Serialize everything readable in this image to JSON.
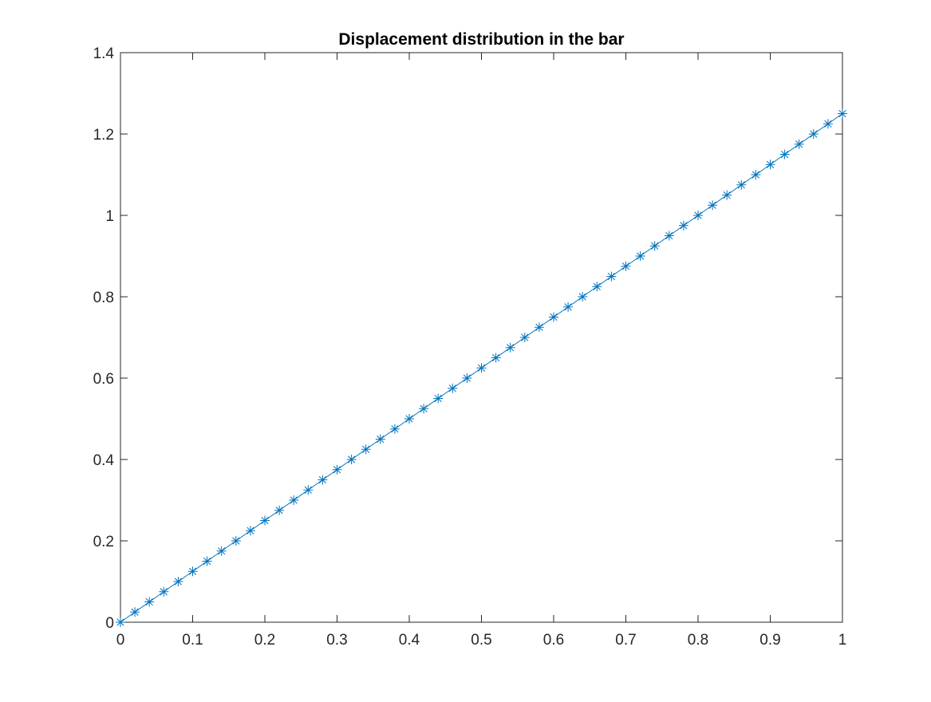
{
  "chart_data": {
    "type": "line",
    "title": "Displacement distribution in the bar",
    "xlabel": "",
    "ylabel": "",
    "xlim": [
      0,
      1
    ],
    "ylim": [
      0,
      1.4
    ],
    "x_ticks": [
      0,
      0.1,
      0.2,
      0.3,
      0.4,
      0.5,
      0.6,
      0.7,
      0.8,
      0.9,
      1
    ],
    "x_tick_labels": [
      "0",
      "0.1",
      "0.2",
      "0.3",
      "0.4",
      "0.5",
      "0.6",
      "0.7",
      "0.8",
      "0.9",
      "1"
    ],
    "y_ticks": [
      0,
      0.2,
      0.4,
      0.6,
      0.8,
      1,
      1.2,
      1.4
    ],
    "y_tick_labels": [
      "0",
      "0.2",
      "0.4",
      "0.6",
      "0.8",
      "1",
      "1.2",
      "1.4"
    ],
    "grid": false,
    "legend": "none",
    "box": true,
    "series": [
      {
        "marker": "asterisk",
        "color": "#0072BD",
        "x": [
          0,
          0.02,
          0.04,
          0.06,
          0.08,
          0.1,
          0.12,
          0.14,
          0.16,
          0.18,
          0.2,
          0.22,
          0.24,
          0.26,
          0.28,
          0.3,
          0.32,
          0.34,
          0.36,
          0.38,
          0.4,
          0.42,
          0.44,
          0.46,
          0.48,
          0.5,
          0.52,
          0.54,
          0.56,
          0.58,
          0.6,
          0.62,
          0.64,
          0.66,
          0.68,
          0.7,
          0.72,
          0.74,
          0.76,
          0.78,
          0.8,
          0.82,
          0.84,
          0.86,
          0.88,
          0.9,
          0.92,
          0.94,
          0.96,
          0.98,
          1
        ],
        "y": [
          0,
          0.025,
          0.05,
          0.075,
          0.1,
          0.125,
          0.15,
          0.175,
          0.2,
          0.225,
          0.25,
          0.275,
          0.3,
          0.325,
          0.35,
          0.375,
          0.4,
          0.425,
          0.45,
          0.475,
          0.5,
          0.525,
          0.55,
          0.575,
          0.6,
          0.625,
          0.65,
          0.675,
          0.7,
          0.725,
          0.75,
          0.775,
          0.8,
          0.825,
          0.85,
          0.875,
          0.9,
          0.925,
          0.95,
          0.975,
          1,
          1.025,
          1.05,
          1.075,
          1.1,
          1.125,
          1.15,
          1.175,
          1.2,
          1.225,
          1.25
        ]
      }
    ]
  },
  "colors": {
    "background": "#ffffff",
    "axes": "#262626",
    "series": "#0072BD"
  }
}
